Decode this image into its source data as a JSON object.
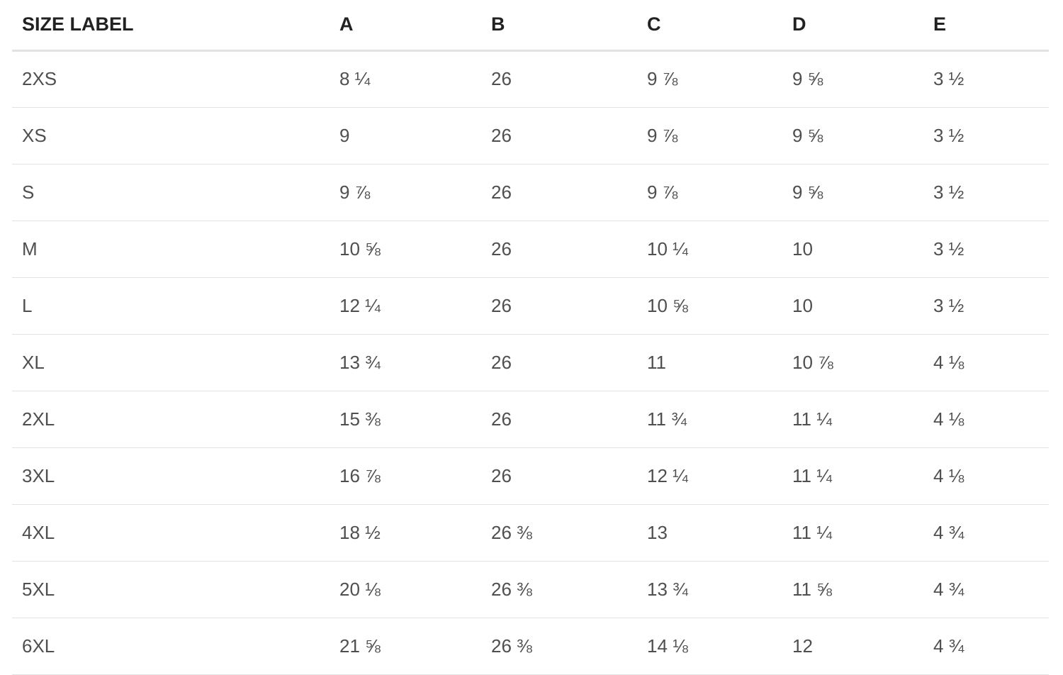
{
  "table": {
    "headers": [
      "SIZE LABEL",
      "A",
      "B",
      "C",
      "D",
      "E"
    ],
    "rows": [
      [
        "2XS",
        "8 ¼",
        "26",
        "9 ⅞",
        "9 ⅝",
        "3 ½"
      ],
      [
        "XS",
        "9",
        "26",
        "9 ⅞",
        "9 ⅝",
        "3 ½"
      ],
      [
        "S",
        "9 ⅞",
        "26",
        "9 ⅞",
        "9 ⅝",
        "3 ½"
      ],
      [
        "M",
        "10 ⅝",
        "26",
        "10 ¼",
        "10",
        "3 ½"
      ],
      [
        "L",
        "12 ¼",
        "26",
        "10 ⅝",
        "10",
        "3 ½"
      ],
      [
        "XL",
        "13 ¾",
        "26",
        "11",
        "10 ⅞",
        "4 ⅛"
      ],
      [
        "2XL",
        "15 ⅜",
        "26",
        "11 ¾",
        "11 ¼",
        "4 ⅛"
      ],
      [
        "3XL",
        "16 ⅞",
        "26",
        "12 ¼",
        "11 ¼",
        "4 ⅛"
      ],
      [
        "4XL",
        "18 ½",
        "26 ⅜",
        "13",
        "11 ¼",
        "4 ¾"
      ],
      [
        "5XL",
        "20 ⅛",
        "26 ⅜",
        "13 ¾",
        "11 ⅝",
        "4 ¾"
      ],
      [
        "6XL",
        "21 ⅝",
        "26 ⅜",
        "14 ⅛",
        "12",
        "4 ¾"
      ]
    ]
  }
}
